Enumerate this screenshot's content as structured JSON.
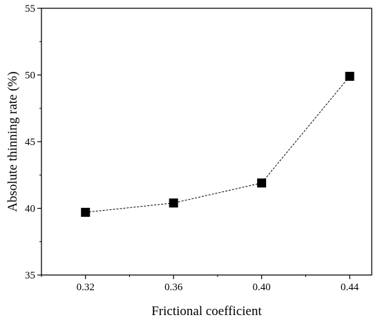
{
  "chart_data": {
    "type": "line",
    "title": "",
    "xlabel": "Frictional coefficient",
    "ylabel": "Absolute thinning rate (%)",
    "x": [
      0.32,
      0.36,
      0.4,
      0.44
    ],
    "x_tick_labels": [
      "0.32",
      "0.36",
      "0.40",
      "0.44"
    ],
    "xlim": [
      0.3,
      0.45
    ],
    "ylim": [
      35,
      55
    ],
    "y_ticks": [
      35,
      40,
      45,
      50,
      55
    ],
    "y_tick_labels": [
      "35",
      "40",
      "45",
      "50",
      "55"
    ],
    "series": [
      {
        "values": [
          39.7,
          40.4,
          41.9,
          49.9
        ],
        "marker": "square",
        "line_style": "dashed",
        "color": "#000000"
      }
    ],
    "grid": false,
    "legend": "none"
  }
}
